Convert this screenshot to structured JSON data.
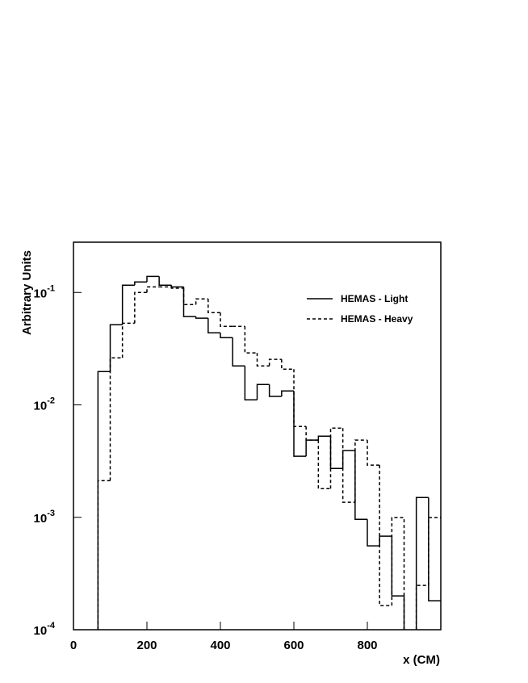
{
  "chart_data": {
    "type": "histogram",
    "x_label": "x (CM)",
    "y_label": "Arbitrary Units",
    "bins": [
      0,
      33.3,
      66.7,
      100,
      133.3,
      166.7,
      200,
      233.3,
      266.7,
      300,
      333.3,
      366.7,
      400,
      433.3,
      466.7,
      500,
      533.3,
      566.7,
      600,
      633.3,
      666.7,
      700,
      733.3,
      766.7,
      800,
      833.3,
      866.7,
      900,
      933.3,
      966.7,
      1000
    ],
    "series": [
      {
        "name": "HEMAS - Light",
        "color": "#000000",
        "dash": "solid",
        "values": [
          null,
          null,
          0.0198,
          0.0516,
          0.116,
          0.124,
          0.139,
          0.116,
          0.112,
          0.061,
          0.059,
          0.0438,
          0.0396,
          0.0222,
          0.0111,
          0.0152,
          0.0119,
          0.0133,
          0.00349,
          0.00486,
          0.00527,
          0.00272,
          0.00392,
          0.00096,
          0.000557,
          0.000679,
          0.0002,
          null,
          0.0015,
          0.000181
        ]
      },
      {
        "name": "HEMAS - Heavy",
        "color": "#000000",
        "dash": "dashed",
        "values": [
          null,
          null,
          0.00212,
          0.0262,
          0.0533,
          0.1,
          0.112,
          0.112,
          0.109,
          0.078,
          0.0877,
          0.0662,
          0.0499,
          0.0499,
          0.029,
          0.0222,
          0.0254,
          0.0208,
          0.00643,
          0.00486,
          0.0018,
          0.00622,
          0.00136,
          0.00486,
          0.00291,
          0.000164,
          0.000993,
          null,
          0.000248,
          0.000993
        ]
      }
    ],
    "xlim": [
      0,
      1000
    ],
    "xticks": [
      0,
      200,
      400,
      600,
      800
    ],
    "ylim": [
      0.0001,
      0.28
    ],
    "log_y": true,
    "yticks": [
      {
        "value": 0.1,
        "label": "10",
        "sup": "-1"
      },
      {
        "value": 0.01,
        "label": "10",
        "sup": "-2"
      },
      {
        "value": 0.001,
        "label": "10",
        "sup": "-3"
      },
      {
        "value": 0.0001,
        "label": "10",
        "sup": "-4"
      }
    ],
    "legend": "upper right"
  }
}
